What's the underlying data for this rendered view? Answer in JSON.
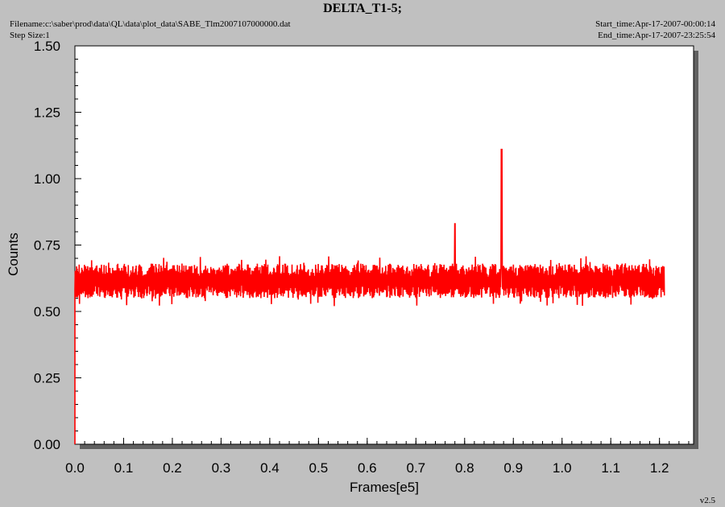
{
  "header": {
    "title": "DELTA_T1-5;",
    "filename": "Filename:c:\\saber\\prod\\data\\QL\\data\\plot_data\\SABE_Tlm2007107000000.dat",
    "step_size": "Step Size:1",
    "start_time": "Start_time:Apr-17-2007-00:00:14",
    "end_time": "End_time:Apr-17-2007-23:25:54"
  },
  "footer": {
    "version": "v2.5"
  },
  "colors": {
    "plot_bg": "#ffffff",
    "page_bg": "#c0c0c0",
    "series": "#ff0000",
    "shadow": "#606060"
  },
  "chart_data": {
    "type": "line",
    "title": "DELTA_T1-5;",
    "xlabel": "Frames[e5]",
    "ylabel": "Counts",
    "xlim": [
      0,
      1.27
    ],
    "ylim": [
      0,
      1.5
    ],
    "xticks": [
      0.0,
      0.1,
      0.2,
      0.3,
      0.4,
      0.5,
      0.6,
      0.7,
      0.8,
      0.9,
      1.0,
      1.1,
      1.2
    ],
    "xtick_labels": [
      "0.0",
      "0.1",
      "0.2",
      "0.3",
      "0.4",
      "0.5",
      "0.6",
      "0.7",
      "0.8",
      "0.9",
      "1.0",
      "1.1",
      "1.2"
    ],
    "yticks": [
      0.0,
      0.25,
      0.5,
      0.75,
      1.0,
      1.25,
      1.5
    ],
    "ytick_labels": [
      "0.00",
      "0.25",
      "0.50",
      "0.75",
      "1.00",
      "1.25",
      "1.50"
    ],
    "grid": false,
    "series": [
      {
        "x_range": [
          0.0,
          1.21
        ],
        "baseline_band": [
          0.55,
          0.68
        ],
        "initial_value": 0.0,
        "spikes": [
          {
            "x": 0.78,
            "y": 0.83
          },
          {
            "x": 0.876,
            "y": 1.11
          }
        ]
      }
    ]
  }
}
